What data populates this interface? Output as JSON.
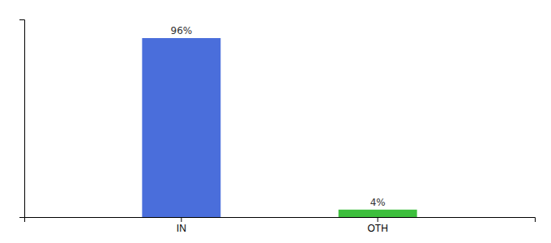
{
  "chart_data": {
    "type": "bar",
    "categories": [
      "IN",
      "OTH"
    ],
    "values": [
      96,
      4
    ],
    "value_labels": [
      "96%",
      "4%"
    ],
    "colors": [
      "#4a6edb",
      "#3dbf3d"
    ],
    "ylim": [
      0,
      106
    ],
    "yticks": [],
    "grid": false,
    "data_labels": true,
    "tick_labels": "x"
  }
}
